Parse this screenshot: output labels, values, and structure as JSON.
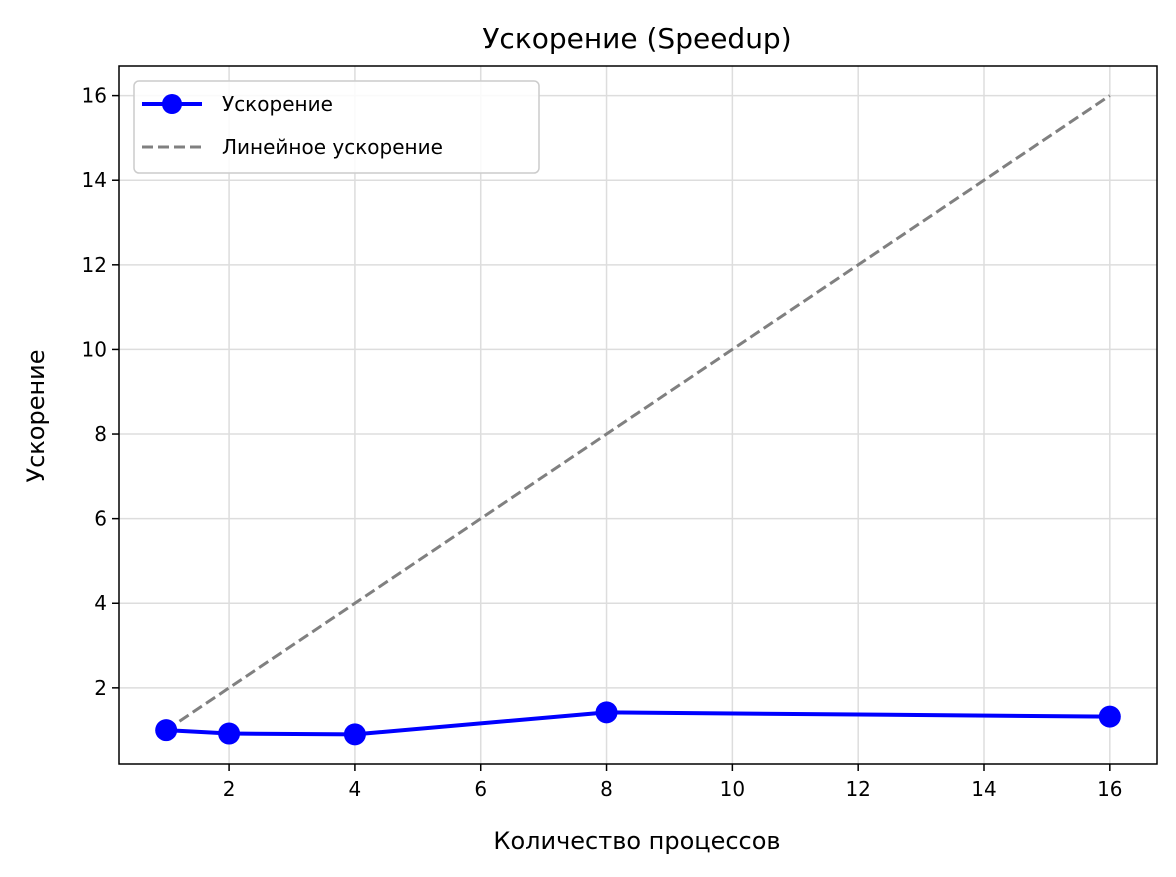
{
  "chart_data": {
    "type": "line",
    "title": "Ускорение (Speedup)",
    "xlabel": "Количество процессов",
    "ylabel": "Ускорение",
    "xlim": [
      0.25,
      16.75
    ],
    "ylim": [
      0.2,
      16.7
    ],
    "xticks": [
      2,
      4,
      6,
      8,
      10,
      12,
      14,
      16
    ],
    "yticks": [
      2,
      4,
      6,
      8,
      10,
      12,
      14,
      16
    ],
    "grid": true,
    "legend_position": "top-left",
    "series": [
      {
        "name": "Ускорение",
        "style": "solid-markers",
        "color": "#0000ff",
        "points": [
          {
            "x": 1,
            "y": 1.0
          },
          {
            "x": 2,
            "y": 0.92
          },
          {
            "x": 4,
            "y": 0.9
          },
          {
            "x": 8,
            "y": 1.42
          },
          {
            "x": 16,
            "y": 1.32
          }
        ]
      },
      {
        "name": "Линейное ускорение",
        "style": "dashed",
        "color": "#808080",
        "points": [
          {
            "x": 1,
            "y": 1
          },
          {
            "x": 16,
            "y": 16
          }
        ]
      }
    ]
  }
}
